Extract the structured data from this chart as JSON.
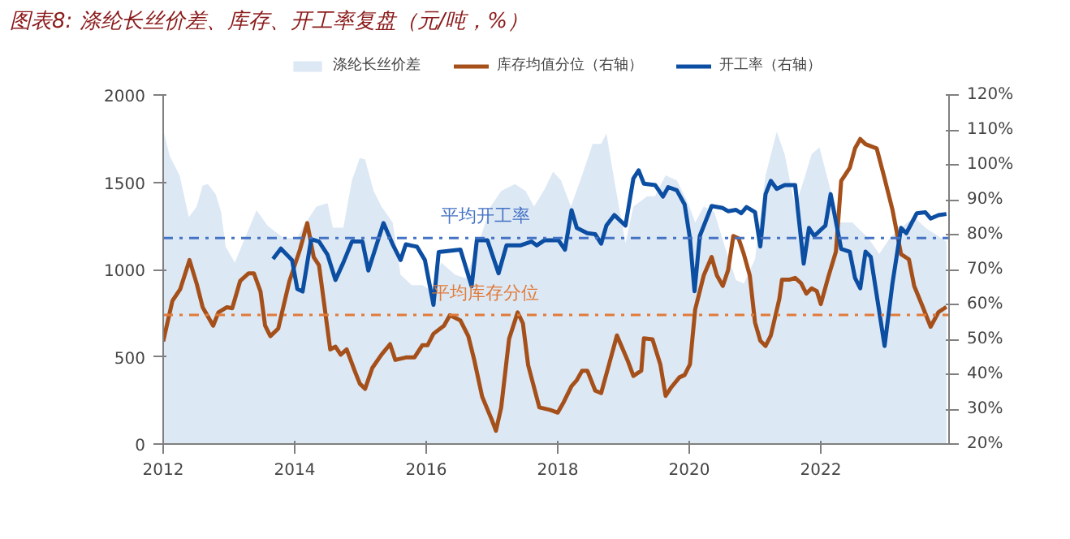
{
  "chart_data": {
    "type": "line",
    "title": "图表8: 涤纶长丝价差、库存、开工率复盘（元/吨，%）",
    "series": [
      {
        "name": "涤纶长丝价差",
        "type": "area",
        "color": "#dde8f5",
        "x": [
          2012.0,
          2012.1,
          2012.25,
          2012.39,
          2012.51,
          2012.6,
          2012.68,
          2012.8,
          2012.88,
          2012.95,
          2013.09,
          2013.21,
          2013.42,
          2013.59,
          2013.83,
          2014.04,
          2014.12,
          2014.33,
          2014.5,
          2014.58,
          2014.74,
          2014.87,
          2014.99,
          2015.07,
          2015.2,
          2015.32,
          2015.49,
          2015.61,
          2015.78,
          2015.94,
          2016.07,
          2016.23,
          2016.44,
          2016.6,
          2016.77,
          2016.98,
          2017.14,
          2017.35,
          2017.51,
          2017.64,
          2017.8,
          2017.93,
          2018.05,
          2018.2,
          2018.37,
          2018.53,
          2018.66,
          2018.74,
          2018.86,
          2019.03,
          2019.15,
          2019.36,
          2019.48,
          2019.64,
          2019.81,
          2019.97,
          2020.09,
          2020.22,
          2020.38,
          2020.55,
          2020.71,
          2020.83,
          2021.0,
          2021.16,
          2021.33,
          2021.45,
          2021.61,
          2021.74,
          2021.86,
          2021.98,
          2022.11,
          2022.27,
          2022.48,
          2022.72,
          2022.89,
          2023.05,
          2023.22,
          2023.42,
          2023.59,
          2023.79,
          2023.91
        ],
        "values": [
          1800,
          1650,
          1540,
          1300,
          1360,
          1480,
          1490,
          1430,
          1330,
          1130,
          1040,
          1150,
          1340,
          1250,
          1180,
          1180,
          1240,
          1360,
          1380,
          1240,
          1240,
          1510,
          1640,
          1630,
          1450,
          1360,
          1270,
          970,
          910,
          910,
          880,
          1040,
          970,
          950,
          1120,
          1360,
          1450,
          1490,
          1450,
          1360,
          1460,
          1560,
          1510,
          1360,
          1540,
          1720,
          1720,
          1780,
          1510,
          1150,
          1360,
          1420,
          1420,
          1540,
          1510,
          1390,
          1270,
          1360,
          1330,
          1120,
          940,
          920,
          1060,
          1540,
          1790,
          1660,
          1360,
          1510,
          1660,
          1700,
          1510,
          1270,
          1270,
          1180,
          1090,
          1180,
          1240,
          1300,
          1240,
          1190,
          1160
        ]
      },
      {
        "name": "库存均值分位（右轴）",
        "axis": "y2",
        "color": "#a5501a",
        "x": [
          2012.0,
          2012.14,
          2012.26,
          2012.4,
          2012.51,
          2012.6,
          2012.76,
          2012.84,
          2012.97,
          2013.05,
          2013.17,
          2013.3,
          2013.38,
          2013.48,
          2013.55,
          2013.63,
          2013.75,
          2013.92,
          2014.08,
          2014.19,
          2014.29,
          2014.37,
          2014.54,
          2014.62,
          2014.7,
          2014.79,
          2014.91,
          2014.99,
          2015.07,
          2015.18,
          2015.32,
          2015.45,
          2015.53,
          2015.69,
          2015.82,
          2015.94,
          2016.02,
          2016.11,
          2016.27,
          2016.36,
          2016.52,
          2016.64,
          2016.73,
          2016.85,
          2017.0,
          2017.06,
          2017.14,
          2017.26,
          2017.39,
          2017.47,
          2017.55,
          2017.72,
          2017.88,
          2018.0,
          2018.09,
          2018.21,
          2018.29,
          2018.37,
          2018.45,
          2018.57,
          2018.66,
          2018.78,
          2018.9,
          2019.07,
          2019.15,
          2019.27,
          2019.31,
          2019.44,
          2019.56,
          2019.64,
          2019.72,
          2019.85,
          2019.93,
          2020.01,
          2020.09,
          2020.22,
          2020.34,
          2020.42,
          2020.51,
          2020.59,
          2020.67,
          2020.75,
          2020.83,
          2020.92,
          2021.0,
          2021.08,
          2021.16,
          2021.24,
          2021.37,
          2021.41,
          2021.53,
          2021.61,
          2021.7,
          2021.78,
          2021.86,
          2021.94,
          2022.0,
          2022.11,
          2022.23,
          2022.31,
          2022.44,
          2022.52,
          2022.6,
          2022.68,
          2022.85,
          2022.97,
          2023.09,
          2023.22,
          2023.34,
          2023.42,
          2023.55,
          2023.67,
          2023.79,
          2023.91
        ],
        "values": [
          49.4,
          61.0,
          64.4,
          72.7,
          65.9,
          59.2,
          53.9,
          57.7,
          59.2,
          58.9,
          66.7,
          68.9,
          68.9,
          63.7,
          53.9,
          50.9,
          53.1,
          66.7,
          75.7,
          83.3,
          73.5,
          71.2,
          47.1,
          47.9,
          45.6,
          47.1,
          41.1,
          37.3,
          35.8,
          41.8,
          45.6,
          48.6,
          44.1,
          44.8,
          44.8,
          48.3,
          48.3,
          51.6,
          53.9,
          56.9,
          55.4,
          50.9,
          44.1,
          33.6,
          26.8,
          23.8,
          30.5,
          50.1,
          57.7,
          54.6,
          42.6,
          30.5,
          29.8,
          29.0,
          32.0,
          36.6,
          38.3,
          41.0,
          41.0,
          35.3,
          34.6,
          42.8,
          51.1,
          43.6,
          39.5,
          41.0,
          50.3,
          50.0,
          42.8,
          33.8,
          36.1,
          39.1,
          39.8,
          42.8,
          58.6,
          68.3,
          73.6,
          68.3,
          65.3,
          69.8,
          79.6,
          78.9,
          74.4,
          68.3,
          54.8,
          49.6,
          48.1,
          51.1,
          61.6,
          67.1,
          67.1,
          67.6,
          66.1,
          63.1,
          64.6,
          63.8,
          60.1,
          67.6,
          75.1,
          95.4,
          99.1,
          104.7,
          107.4,
          105.9,
          104.7,
          96.1,
          87.1,
          74.4,
          72.9,
          65.3,
          59.3,
          53.6,
          57.8,
          59.3
        ]
      },
      {
        "name": "开工率（右轴）",
        "axis": "y2",
        "color": "#0b4ea2",
        "x": [
          2013.67,
          2013.79,
          2013.96,
          2014.04,
          2014.12,
          2014.25,
          2014.37,
          2014.5,
          2014.62,
          2014.74,
          2014.87,
          2015.03,
          2015.12,
          2015.35,
          2015.49,
          2015.61,
          2015.69,
          2015.86,
          2015.98,
          2016.11,
          2016.19,
          2016.52,
          2016.69,
          2016.77,
          2016.93,
          2017.1,
          2017.22,
          2017.43,
          2017.6,
          2017.68,
          2017.8,
          2018.01,
          2018.11,
          2018.21,
          2018.29,
          2018.45,
          2018.57,
          2018.66,
          2018.74,
          2018.86,
          2019.03,
          2019.15,
          2019.23,
          2019.31,
          2019.48,
          2019.6,
          2019.68,
          2019.81,
          2019.93,
          2020.01,
          2020.08,
          2020.16,
          2020.34,
          2020.51,
          2020.59,
          2020.71,
          2020.79,
          2020.87,
          2021.0,
          2021.08,
          2021.16,
          2021.24,
          2021.33,
          2021.45,
          2021.61,
          2021.74,
          2021.82,
          2021.9,
          2022.07,
          2022.15,
          2022.31,
          2022.44,
          2022.52,
          2022.6,
          2022.68,
          2022.76,
          2022.97,
          2023.09,
          2023.22,
          2023.3,
          2023.46,
          2023.59,
          2023.67,
          2023.79,
          2023.91
        ],
        "values": [
          73.0,
          76.0,
          72.7,
          64.4,
          63.7,
          78.7,
          78.0,
          74.2,
          67.0,
          72.0,
          78.0,
          78.0,
          69.7,
          83.3,
          77.2,
          72.7,
          77.2,
          76.5,
          72.7,
          59.9,
          75.0,
          75.7,
          65.2,
          78.4,
          78.4,
          68.9,
          76.9,
          76.9,
          78.0,
          76.9,
          78.4,
          78.4,
          75.7,
          87.0,
          81.9,
          80.4,
          80.1,
          77.4,
          82.6,
          85.6,
          82.6,
          96.1,
          98.4,
          94.6,
          94.2,
          90.9,
          93.6,
          92.7,
          88.6,
          78.9,
          63.8,
          79.6,
          88.2,
          87.6,
          86.7,
          87.1,
          86.1,
          87.9,
          86.4,
          76.6,
          91.6,
          95.4,
          93.1,
          94.2,
          94.2,
          71.7,
          81.9,
          79.6,
          82.6,
          91.6,
          75.9,
          75.1,
          67.6,
          64.6,
          75.1,
          73.6,
          48.1,
          66.1,
          81.9,
          80.4,
          86.1,
          86.4,
          84.6,
          85.6,
          85.9
        ]
      }
    ],
    "xlim": [
      2012,
      2023.95
    ],
    "xticks": [
      2012,
      2014,
      2016,
      2018,
      2020,
      2022
    ],
    "ylim": [
      0,
      2000
    ],
    "yticks": [
      0,
      500,
      1000,
      1500,
      2000
    ],
    "y2lim": [
      20,
      120
    ],
    "y2ticks": [
      {
        "value": 20,
        "label": "20%"
      },
      {
        "value": 30,
        "label": "30%"
      },
      {
        "value": 40,
        "label": "40%"
      },
      {
        "value": 50,
        "label": "50%"
      },
      {
        "value": 60,
        "label": "60%"
      },
      {
        "value": 70,
        "label": "70%"
      },
      {
        "value": 80,
        "label": "80%"
      },
      {
        "value": 90,
        "label": "90%"
      },
      {
        "value": 100,
        "label": "100%"
      },
      {
        "value": 110,
        "label": "110%"
      },
      {
        "value": 120,
        "label": "120%"
      }
    ],
    "ref_lines": [
      {
        "axis": "y2",
        "value": 79,
        "label": "平均开工率",
        "color": "#4472c4",
        "line_style": "dashdot"
      },
      {
        "axis": "y2",
        "value": 57,
        "label": "平均库存分位",
        "color": "#e07b39",
        "line_style": "dashdot"
      }
    ],
    "grid": false,
    "legend": "top"
  }
}
